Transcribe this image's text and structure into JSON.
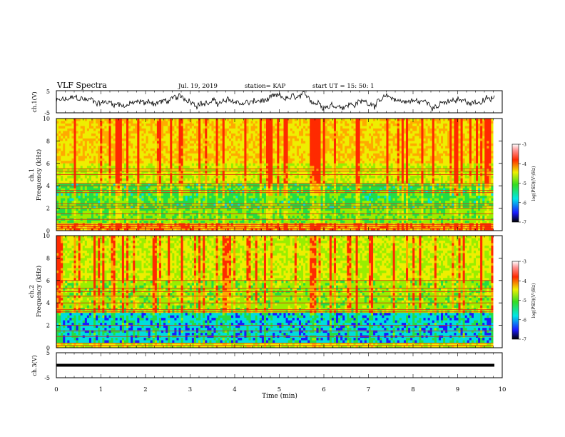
{
  "header": {
    "title": "VLF Spectra",
    "date": "Jul. 19, 2019",
    "station": "station= KAP",
    "start": "start UT = 15: 50: 1"
  },
  "chart_data": [
    {
      "type": "line",
      "name": "ch.1 waveform",
      "ylabel": "ch.1(V)",
      "ylim": [
        -5,
        5
      ],
      "yticks": [
        "5",
        "-5"
      ],
      "xlim": [
        0,
        10
      ],
      "color": "#000000"
    },
    {
      "type": "heatmap",
      "ylabel_line1": "ch.1",
      "ylabel_line2": "Frequency (kHz)",
      "ylim": [
        0,
        10
      ],
      "yticks": [
        "0",
        "2",
        "4",
        "6",
        "8",
        "10"
      ],
      "xlim": [
        0,
        9.8
      ],
      "colorbar": {
        "label": "log(PSD)(V²/Hz)",
        "ticks": [
          "-3",
          "-4",
          "-5",
          "-6",
          "-7"
        ],
        "range": [
          -7,
          -3
        ]
      },
      "bands_khz": [
        0.2,
        0.35,
        0.55,
        1.0,
        1.5,
        2.0,
        2.2,
        2.4,
        3.4,
        3.6,
        4.0,
        4.2,
        5.0,
        5.3,
        5.5
      ]
    },
    {
      "type": "heatmap",
      "ylabel_line1": "ch.2",
      "ylabel_line2": "Frequency (kHz)",
      "ylim": [
        0,
        10
      ],
      "yticks": [
        "0",
        "2",
        "4",
        "6",
        "8",
        "10"
      ],
      "xlim": [
        0,
        9.8
      ],
      "colorbar": {
        "label": "log(PSD)(V²/Hz)",
        "ticks": [
          "-3",
          "-4",
          "-5",
          "-6",
          "-7"
        ],
        "range": [
          -7,
          -3
        ]
      },
      "bands_khz": [
        0.2,
        0.4,
        1.0,
        1.5,
        2.0,
        3.2,
        3.4,
        4.0,
        4.6,
        5.0,
        5.3,
        6.0
      ]
    },
    {
      "type": "line",
      "name": "ch.3 waveform",
      "ylabel": "ch.3(V)",
      "ylim": [
        -5,
        5
      ],
      "yticks": [
        "5",
        "0",
        "-5"
      ],
      "xlim": [
        0,
        10
      ],
      "constant_value": 0,
      "xlabel": "Time (min)",
      "xticks": [
        "0",
        "1",
        "2",
        "3",
        "4",
        "5",
        "6",
        "7",
        "8",
        "9",
        "10"
      ],
      "color": "#000000"
    }
  ]
}
